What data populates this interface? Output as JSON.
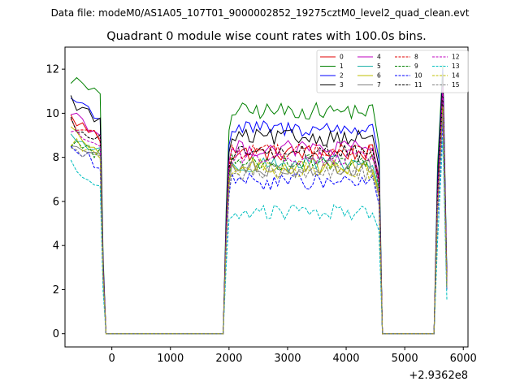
{
  "chart_data": {
    "type": "line",
    "suptitle": "Data file: modeM0/AS1A05_107T01_9000002852_19275cztM0_level2_quad_clean.evt",
    "title": "Quadrant 0 module wise count rates with 100.0s bins.",
    "xlabel": "",
    "ylabel": "",
    "x_offset_label": "+2.9362e8",
    "xlim": [
      -800,
      6080
    ],
    "ylim": [
      -0.6,
      13.0
    ],
    "xticks": [
      0,
      1000,
      2000,
      3000,
      4000,
      5000,
      6000
    ],
    "yticks": [
      0,
      2,
      4,
      6,
      8,
      10,
      12
    ],
    "grid": false,
    "legend_position": "top-right",
    "legend_columns": 4,
    "series": [
      {
        "name": "0",
        "color": "#e00000",
        "dash": "solid",
        "level": 8.2,
        "start": 9.8,
        "spike": 11.0
      },
      {
        "name": "1",
        "color": "#008000",
        "dash": "solid",
        "level": 10.1,
        "start": 11.6,
        "spike": 12.2
      },
      {
        "name": "2",
        "color": "#0000ff",
        "dash": "solid",
        "level": 9.3,
        "start": 10.7,
        "spike": 12.0
      },
      {
        "name": "3",
        "color": "#000000",
        "dash": "solid",
        "level": 8.9,
        "start": 10.6,
        "spike": 11.8
      },
      {
        "name": "4",
        "color": "#bf00bf",
        "dash": "solid",
        "level": 8.4,
        "start": 10.1,
        "spike": 11.2
      },
      {
        "name": "5",
        "color": "#20b2aa",
        "dash": "solid",
        "level": 7.7,
        "start": 9.0,
        "spike": 10.6
      },
      {
        "name": "6",
        "color": "#bfbf00",
        "dash": "solid",
        "level": 7.6,
        "start": 9.1,
        "spike": 10.4
      },
      {
        "name": "7",
        "color": "#808080",
        "dash": "solid",
        "level": 7.5,
        "start": 8.6,
        "spike": 10.2
      },
      {
        "name": "8",
        "color": "#e00000",
        "dash": "dashed",
        "level": 8.3,
        "start": 9.6,
        "spike": 11.0
      },
      {
        "name": "9",
        "color": "#008000",
        "dash": "dashed",
        "level": 7.8,
        "start": 8.7,
        "spike": 10.6
      },
      {
        "name": "10",
        "color": "#0000ff",
        "dash": "dashed",
        "level": 6.9,
        "start": 8.5,
        "spike": 9.6
      },
      {
        "name": "11",
        "color": "#000000",
        "dash": "dashed",
        "level": 8.2,
        "start": 9.6,
        "spike": 11.0
      },
      {
        "name": "12",
        "color": "#bf00bf",
        "dash": "dashed",
        "level": 8.0,
        "start": 9.3,
        "spike": 11.2
      },
      {
        "name": "13",
        "color": "#00bfbf",
        "dash": "dashed",
        "level": 5.5,
        "start": 7.8,
        "spike": 8.9
      },
      {
        "name": "14",
        "color": "#bfbf00",
        "dash": "dashed",
        "level": 7.4,
        "start": 8.8,
        "spike": 10.3
      },
      {
        "name": "15",
        "color": "#808080",
        "dash": "dashed",
        "level": 7.3,
        "start": 8.5,
        "spike": 10.0
      }
    ]
  }
}
